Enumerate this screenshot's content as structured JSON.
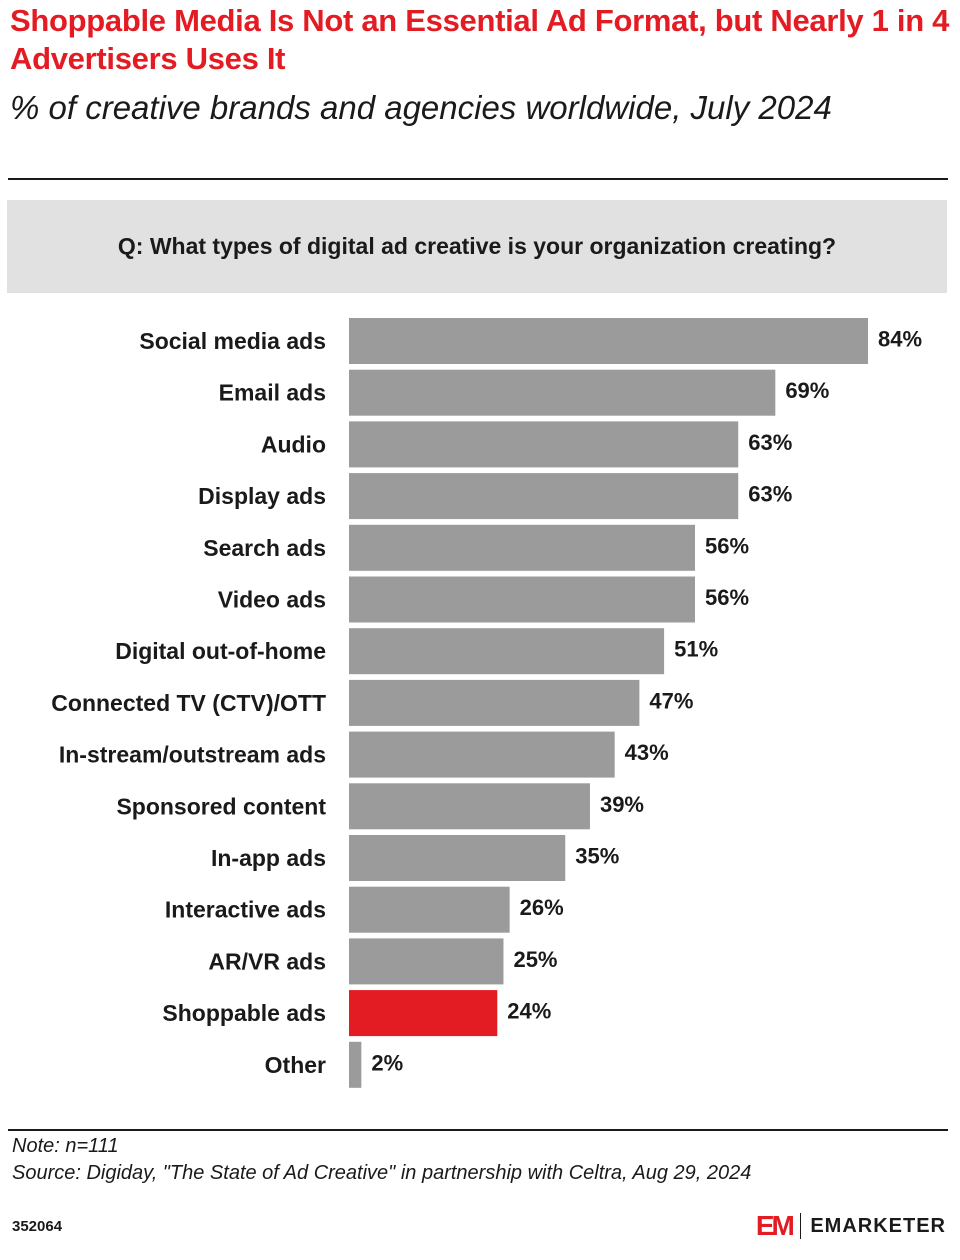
{
  "header": {
    "title": "Shoppable Media Is Not an Essential Ad Format, but Nearly 1 in 4 Advertisers Uses It",
    "subtitle": "% of creative brands and agencies worldwide, July 2024",
    "question": "Q: What types of digital ad creative is your organization creating?"
  },
  "chart_data": {
    "type": "bar",
    "orientation": "horizontal",
    "categories": [
      "Social media ads",
      "Email ads",
      "Audio",
      "Display ads",
      "Search ads",
      "Video ads",
      "Digital out-of-home",
      "Connected TV (CTV)/OTT",
      "In-stream/outstream ads",
      "Sponsored content",
      "In-app ads",
      "Interactive ads",
      "AR/VR ads",
      "Shoppable ads",
      "Other"
    ],
    "values": [
      84,
      69,
      63,
      63,
      56,
      56,
      51,
      47,
      43,
      39,
      35,
      26,
      25,
      24,
      2
    ],
    "value_labels": [
      "84%",
      "69%",
      "63%",
      "63%",
      "56%",
      "56%",
      "51%",
      "47%",
      "43%",
      "39%",
      "35%",
      "26%",
      "25%",
      "24%",
      "2%"
    ],
    "highlight_index": 13,
    "bar_color": "#9b9b9b",
    "highlight_color": "#e31b23",
    "xlim": [
      0,
      84
    ],
    "grid": false,
    "legend": "none"
  },
  "footer": {
    "note": "Note: n=111",
    "source": "Source: Digiday, \"The State of Ad Creative\" in partnership with Celtra, Aug 29, 2024",
    "chart_id": "352064",
    "logo_mark": "EM",
    "logo_text": "EMARKETER"
  }
}
